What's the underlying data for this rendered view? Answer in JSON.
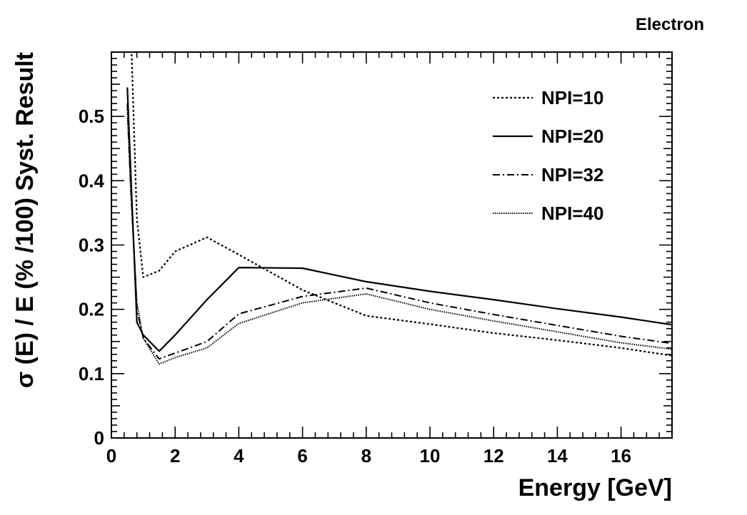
{
  "chart_data": {
    "type": "line",
    "corner_label": "Electron",
    "xlabel": "Energy [GeV]",
    "ylabel": "σ (E) / E (% /100) Syst. Result",
    "xlim": [
      0,
      17.6
    ],
    "ylim": [
      0,
      0.6
    ],
    "x_ticks": [
      0,
      2,
      4,
      6,
      8,
      10,
      12,
      14,
      16
    ],
    "y_ticks": [
      0,
      0.1,
      0.2,
      0.3,
      0.4,
      0.5
    ],
    "grid": false,
    "legend_position": "top-right",
    "series": [
      {
        "name": "NPI=10",
        "style": "dotted",
        "x": [
          0.6,
          0.8,
          1,
          1.5,
          2,
          3,
          4,
          6,
          8,
          10,
          12,
          14,
          16,
          17.6
        ],
        "y": [
          0.65,
          0.34,
          0.25,
          0.26,
          0.29,
          0.312,
          0.285,
          0.23,
          0.19,
          0.177,
          0.163,
          0.152,
          0.14,
          0.128
        ]
      },
      {
        "name": "NPI=20",
        "style": "solid",
        "x": [
          0.5,
          0.6,
          0.8,
          1,
          1.5,
          2,
          3,
          4,
          6,
          8,
          10,
          12,
          14,
          16,
          17.6
        ],
        "y": [
          0.545,
          0.42,
          0.18,
          0.16,
          0.135,
          0.16,
          0.215,
          0.265,
          0.264,
          0.243,
          0.228,
          0.215,
          0.201,
          0.188,
          0.176
        ]
      },
      {
        "name": "NPI=32",
        "style": "dashdot",
        "x": [
          0.5,
          0.6,
          0.8,
          1,
          1.5,
          2,
          3,
          4,
          6,
          8,
          10,
          12,
          14,
          16,
          17.6
        ],
        "y": [
          0.52,
          0.4,
          0.2,
          0.155,
          0.123,
          0.132,
          0.15,
          0.193,
          0.22,
          0.233,
          0.21,
          0.192,
          0.175,
          0.158,
          0.147
        ]
      },
      {
        "name": "NPI=40",
        "style": "finedotted",
        "x": [
          0.5,
          0.6,
          0.8,
          1,
          1.5,
          2,
          3,
          4,
          6,
          8,
          10,
          12,
          14,
          16,
          17.6
        ],
        "y": [
          0.51,
          0.39,
          0.21,
          0.155,
          0.115,
          0.125,
          0.14,
          0.178,
          0.21,
          0.224,
          0.2,
          0.182,
          0.165,
          0.148,
          0.138
        ]
      }
    ]
  }
}
